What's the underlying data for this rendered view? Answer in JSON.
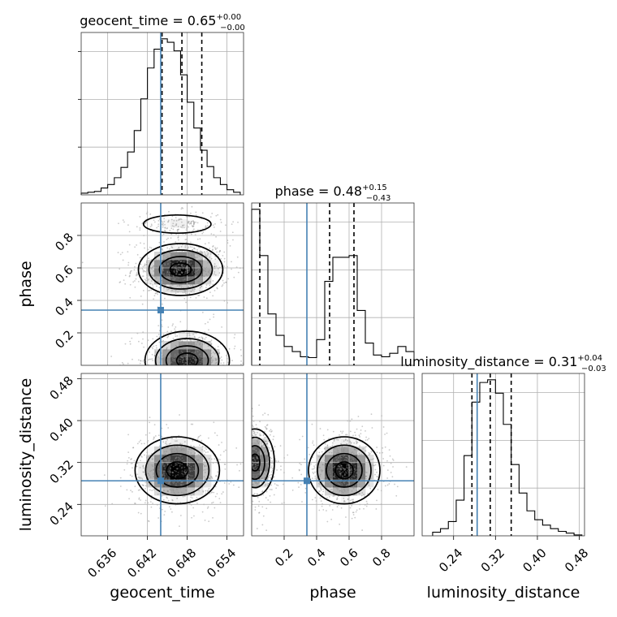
{
  "chart_data": {
    "type": "corner",
    "parameters": [
      {
        "name": "geocent_time",
        "label": "geocent_time",
        "range": [
          0.632,
          0.6565
        ],
        "ticks": [
          0.636,
          0.642,
          0.648,
          0.654
        ],
        "tick_labels": [
          "0.636",
          "0.642",
          "0.648",
          "0.654"
        ],
        "truth": 0.644,
        "quantiles": [
          0.6442,
          0.6472,
          0.6502
        ],
        "title": "geocent_time = 0.65",
        "title_plus": "+0.00",
        "title_minus": "−0.00",
        "hist_edges": [
          0.632,
          0.633,
          0.634,
          0.635,
          0.636,
          0.637,
          0.638,
          0.639,
          0.64,
          0.641,
          0.642,
          0.643,
          0.644,
          0.645,
          0.646,
          0.647,
          0.648,
          0.649,
          0.65,
          0.651,
          0.652,
          0.653,
          0.654,
          0.655,
          0.656
        ],
        "hist_counts": [
          2,
          3,
          4,
          8,
          12,
          20,
          32,
          50,
          75,
          112,
          148,
          170,
          182,
          178,
          168,
          140,
          108,
          78,
          52,
          33,
          20,
          12,
          6,
          3
        ]
      },
      {
        "name": "phase",
        "label": "phase",
        "range": [
          0.0,
          1.0
        ],
        "ticks": [
          0.2,
          0.4,
          0.6,
          0.8
        ],
        "tick_labels": [
          "0.2",
          "0.4",
          "0.6",
          "0.8"
        ],
        "truth": 0.34,
        "quantiles": [
          0.05,
          0.48,
          0.63
        ],
        "title": "phase = 0.48",
        "title_plus": "+0.15",
        "title_minus": "−0.43",
        "hist_edges": [
          0.0,
          0.05,
          0.1,
          0.15,
          0.2,
          0.25,
          0.3,
          0.35,
          0.4,
          0.45,
          0.5,
          0.55,
          0.6,
          0.65,
          0.7,
          0.75,
          0.8,
          0.85,
          0.9,
          0.95,
          1.0
        ],
        "hist_counts": [
          182,
          128,
          60,
          35,
          22,
          16,
          10,
          9,
          30,
          98,
          126,
          126,
          128,
          64,
          26,
          12,
          10,
          14,
          22,
          16
        ]
      },
      {
        "name": "luminosity_distance",
        "label": "luminosity_distance",
        "range": [
          0.18,
          0.49
        ],
        "ticks": [
          0.24,
          0.32,
          0.4,
          0.48
        ],
        "tick_labels": [
          "0.24",
          "0.32",
          "0.40",
          "0.48"
        ],
        "truth": 0.285,
        "quantiles": [
          0.275,
          0.31,
          0.35
        ],
        "title": "luminosity_distance = 0.31",
        "title_plus": "+0.04",
        "title_minus": "−0.03",
        "hist_edges": [
          0.2,
          0.215,
          0.23,
          0.245,
          0.26,
          0.275,
          0.29,
          0.305,
          0.32,
          0.335,
          0.35,
          0.365,
          0.38,
          0.395,
          0.41,
          0.425,
          0.44,
          0.455,
          0.47,
          0.485
        ],
        "hist_counts": [
          4,
          8,
          16,
          40,
          90,
          150,
          172,
          175,
          160,
          125,
          80,
          48,
          28,
          18,
          12,
          8,
          5,
          3,
          1
        ]
      }
    ],
    "joint_peaks": [
      {
        "x": "geocent_time",
        "y": "phase",
        "modes": [
          [
            0.647,
            0.59
          ],
          [
            0.648,
            0.03
          ],
          [
            0.6465,
            0.87
          ]
        ]
      },
      {
        "x": "geocent_time",
        "y": "luminosity_distance",
        "modes": [
          [
            0.6465,
            0.305
          ]
        ]
      },
      {
        "x": "phase",
        "y": "luminosity_distance",
        "modes": [
          [
            0.57,
            0.305
          ],
          [
            0.02,
            0.32
          ]
        ]
      }
    ],
    "truth_color": "#4682b4",
    "grid": true
  }
}
